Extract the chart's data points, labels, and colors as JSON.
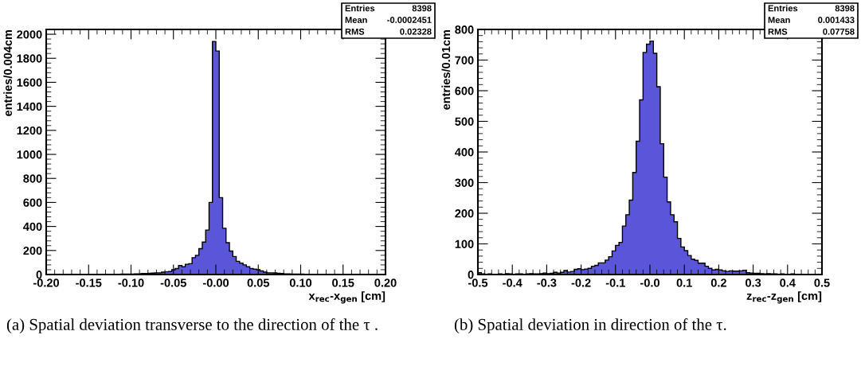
{
  "chart_data": [
    {
      "type": "histogram",
      "xlabel": "x$_{rec}$-x$_{gen}$ [cm]",
      "ylabel": "entries/0.004cm",
      "color": "#5a55d9",
      "bins": [
        -0.2,
        -0.196,
        -0.192,
        -0.188,
        -0.184,
        -0.18,
        -0.176,
        -0.172,
        -0.168,
        -0.164,
        -0.16,
        -0.156,
        -0.152,
        -0.148,
        -0.144,
        -0.14,
        -0.136,
        -0.132,
        -0.128,
        -0.124,
        -0.12,
        -0.116,
        -0.112,
        -0.108,
        -0.104,
        -0.1,
        -0.096,
        -0.092,
        -0.088,
        -0.084,
        -0.08,
        -0.076,
        -0.072,
        -0.068,
        -0.064,
        -0.06,
        -0.056,
        -0.052,
        -0.048,
        -0.044,
        -0.04,
        -0.036,
        -0.032,
        -0.028,
        -0.024,
        -0.02,
        -0.016,
        -0.012,
        -0.008,
        -0.004,
        0,
        0.004,
        0.008,
        0.012,
        0.016,
        0.02,
        0.024,
        0.028,
        0.032,
        0.036,
        0.04,
        0.044,
        0.048,
        0.052,
        0.056,
        0.06,
        0.064,
        0.068,
        0.072,
        0.076,
        0.08,
        0.084,
        0.088,
        0.092,
        0.096,
        0.1,
        0.104,
        0.108,
        0.112,
        0.116,
        0.12,
        0.124,
        0.128,
        0.132,
        0.136,
        0.14,
        0.144,
        0.148,
        0.152,
        0.156,
        0.16,
        0.164,
        0.168,
        0.172,
        0.176,
        0.18,
        0.184,
        0.188,
        0.192,
        0.196,
        0.2
      ],
      "values": [
        0,
        1,
        0,
        0,
        1,
        0,
        1,
        1,
        0,
        1,
        1,
        1,
        1,
        1,
        2,
        1,
        2,
        2,
        3,
        2,
        3,
        3,
        4,
        4,
        5,
        5,
        6,
        6,
        8,
        8,
        10,
        12,
        14,
        15,
        20,
        22,
        25,
        40,
        50,
        75,
        65,
        85,
        90,
        140,
        160,
        215,
        270,
        370,
        600,
        1940,
        1860,
        640,
        385,
        265,
        195,
        150,
        110,
        95,
        80,
        65,
        50,
        45,
        40,
        30,
        20,
        15,
        14,
        13,
        10,
        8,
        6,
        5,
        4,
        3,
        3,
        3,
        2,
        2,
        2,
        1,
        2,
        1,
        1,
        1,
        1,
        0,
        1,
        1,
        0,
        1,
        0,
        0,
        1,
        0,
        0,
        1,
        0,
        0,
        0,
        1
      ],
      "xlim": [
        -0.2,
        0.2
      ],
      "xticks": [
        {
          "value": -0.2,
          "label": "-0.20"
        },
        {
          "value": -0.15,
          "label": "-0.15"
        },
        {
          "value": -0.1,
          "label": "-0.10"
        },
        {
          "value": -0.05,
          "label": "-0.05"
        },
        {
          "value": 0,
          "label": "-0.00"
        },
        {
          "value": 0.05,
          "label": "0.05"
        },
        {
          "value": 0.1,
          "label": "0.10"
        },
        {
          "value": 0.15,
          "label": "0.15"
        },
        {
          "value": 0.2,
          "label": "0.20"
        }
      ],
      "ylim": [
        0,
        2040
      ],
      "yticks": [
        0,
        200,
        400,
        600,
        800,
        1000,
        1200,
        1400,
        1600,
        1800,
        2000
      ],
      "grid": false,
      "annotations": [
        "Entries",
        "8398",
        "Mean",
        "-0.0002451",
        "RMS",
        "0.02328",
        "(a) Spatial deviation transverse to the direction of the τ ."
      ]
    },
    {
      "type": "histogram",
      "xlabel": "z$_{rec}$-z$_{gen}$ [cm]",
      "ylabel": "entries/0.01cm",
      "color": "#5a55d9",
      "bins": [
        -0.5,
        -0.49,
        -0.48,
        -0.47,
        -0.46,
        -0.45,
        -0.44,
        -0.43,
        -0.42,
        -0.41,
        -0.4,
        -0.39,
        -0.38,
        -0.37,
        -0.36,
        -0.35,
        -0.34,
        -0.33,
        -0.32,
        -0.31,
        -0.3,
        -0.29,
        -0.28,
        -0.27,
        -0.26,
        -0.25,
        -0.24,
        -0.23,
        -0.22,
        -0.21,
        -0.2,
        -0.19,
        -0.18,
        -0.17,
        -0.16,
        -0.15,
        -0.14,
        -0.13,
        -0.12,
        -0.11,
        -0.1,
        -0.09,
        -0.08,
        -0.07,
        -0.06,
        -0.05,
        -0.04,
        -0.03,
        -0.02,
        -0.01,
        0,
        0.01,
        0.02,
        0.03,
        0.04,
        0.05,
        0.06,
        0.07,
        0.08,
        0.09,
        0.1,
        0.11,
        0.12,
        0.13,
        0.14,
        0.15,
        0.16,
        0.17,
        0.18,
        0.19,
        0.2,
        0.21,
        0.22,
        0.23,
        0.24,
        0.25,
        0.26,
        0.27,
        0.28,
        0.29,
        0.3,
        0.31,
        0.32,
        0.33,
        0.34,
        0.35,
        0.36,
        0.37,
        0.38,
        0.39,
        0.4,
        0.41,
        0.42,
        0.43,
        0.44,
        0.45,
        0.46,
        0.47,
        0.48,
        0.49,
        0.5
      ],
      "values": [
        6,
        2,
        1,
        2,
        1,
        1,
        2,
        1,
        3,
        2,
        1,
        2,
        2,
        1,
        2,
        3,
        2,
        2,
        3,
        5,
        3,
        4,
        7,
        5,
        7,
        13,
        8,
        10,
        17,
        19,
        16,
        18,
        20,
        27,
        30,
        38,
        38,
        47,
        58,
        77,
        95,
        105,
        158,
        195,
        243,
        333,
        435,
        570,
        725,
        752,
        762,
        722,
        613,
        427,
        318,
        237,
        195,
        172,
        118,
        90,
        78,
        62,
        50,
        46,
        37,
        37,
        27,
        20,
        15,
        17,
        15,
        12,
        10,
        12,
        11,
        11,
        12,
        14,
        6,
        5,
        4,
        4,
        3,
        2,
        3,
        2,
        2,
        1,
        2,
        1,
        1,
        2,
        1,
        1,
        0,
        1,
        1,
        0,
        1,
        1
      ],
      "xlim": [
        -0.5,
        0.5
      ],
      "xticks": [
        -0.5,
        -0.4,
        -0.3,
        -0.2,
        -0.1,
        {
          "value": 0,
          "label": "-0.0"
        },
        0.1,
        0.2,
        0.3,
        0.4,
        0.5
      ],
      "ylim": [
        0,
        800
      ],
      "yticks": [
        0,
        100,
        200,
        300,
        400,
        500,
        600,
        700,
        800
      ],
      "grid": false,
      "annotations": [
        "Entries",
        "8398",
        "Mean",
        "0.001433",
        "RMS",
        "0.07758",
        "(b) Spatial deviation in direction of the τ."
      ]
    }
  ]
}
